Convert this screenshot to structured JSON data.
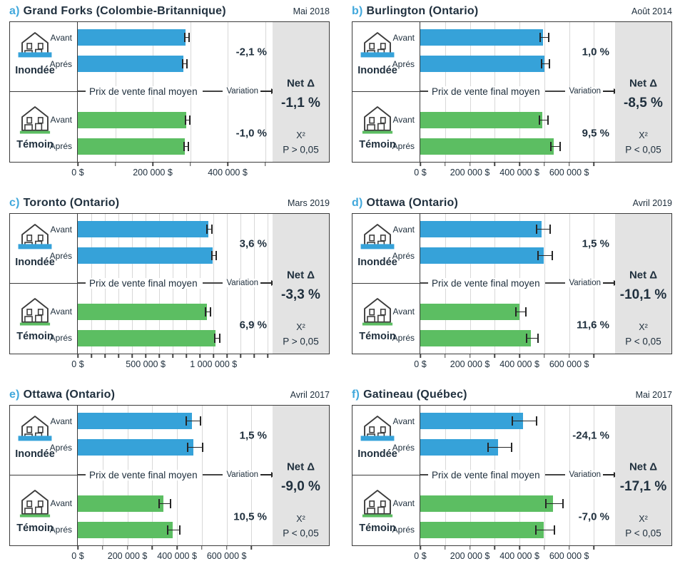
{
  "common": {
    "middle_label": "Prix de vente final moyen",
    "variation_label": "Variation",
    "net_title": "Net Δ",
    "chi_label": "X²",
    "colors": {
      "flooded_bar": "#36a2d9",
      "control_bar": "#5cbe62",
      "accent_letter": "#41a8dc",
      "text_dark": "#20303e",
      "gray_box": "#e3e3e3",
      "grid_line": "#d8d8d8",
      "border": "#3b3b3b"
    }
  },
  "chart_data": [
    {
      "type": "bar",
      "orientation": "horizontal",
      "letter": "a)",
      "title": "Grand Forks (Colombie-Britannique)",
      "date": "Mai 2018",
      "axis_max": 520000,
      "grid_step": 100000,
      "ticks": [
        {
          "value": 0,
          "label": "0 $"
        },
        {
          "value": 200000,
          "label": "200 000 $"
        },
        {
          "value": 400000,
          "label": "400 000 $"
        }
      ],
      "groups": [
        {
          "name": "Inondée",
          "variation": "-2,1 %",
          "bars": [
            {
              "label": "Avant",
              "value": 288000,
              "error": 4000
            },
            {
              "label": "Aprés",
              "value": 282000,
              "error": 4000
            }
          ]
        },
        {
          "name": "Témoin",
          "variation": "-1,0 %",
          "bars": [
            {
              "label": "Avant",
              "value": 289000,
              "error": 4000
            },
            {
              "label": "Aprés",
              "value": 286000,
              "error": 4000
            }
          ]
        }
      ],
      "net_delta": "-1,1 %",
      "p_text": "P > 0,05"
    },
    {
      "type": "bar",
      "orientation": "horizontal",
      "letter": "b)",
      "title": "Burlington (Ontario)",
      "date": "Août 2014",
      "axis_max": 785000,
      "grid_step": 100000,
      "ticks": [
        {
          "value": 0,
          "label": "0 $"
        },
        {
          "value": 200000,
          "label": "200 000 $"
        },
        {
          "value": 400000,
          "label": "400 000 $"
        },
        {
          "value": 600000,
          "label": "600 000 $"
        }
      ],
      "groups": [
        {
          "name": "Inondée",
          "variation": "1,0 %",
          "bars": [
            {
              "label": "Avant",
              "value": 494000,
              "error": 14000
            },
            {
              "label": "Aprés",
              "value": 499000,
              "error": 14000
            }
          ]
        },
        {
          "name": "Témoin",
          "variation": "9,5 %",
          "bars": [
            {
              "label": "Avant",
              "value": 492000,
              "error": 14000
            },
            {
              "label": "Aprés",
              "value": 539000,
              "error": 16000
            }
          ]
        }
      ],
      "net_delta": "-8,5 %",
      "p_text": "P < 0,05"
    },
    {
      "type": "bar",
      "orientation": "horizontal",
      "letter": "c)",
      "title": "Toronto (Ontario)",
      "date": "Mars 2019",
      "axis_max": 1435000,
      "grid_step": 100000,
      "ticks": [
        {
          "value": 0,
          "label": "0 $"
        },
        {
          "value": 500000,
          "label": "500 000 $"
        },
        {
          "value": 1000000,
          "label": "1 000 000 $"
        }
      ],
      "groups": [
        {
          "name": "Inondée",
          "variation": "3,6 %",
          "bars": [
            {
              "label": "Avant",
              "value": 960000,
              "error": 12000
            },
            {
              "label": "Aprés",
              "value": 994000,
              "error": 12000
            }
          ]
        },
        {
          "name": "Témoin",
          "variation": "6,9 %",
          "bars": [
            {
              "label": "Avant",
              "value": 950000,
              "error": 13000
            },
            {
              "label": "Aprés",
              "value": 1016000,
              "error": 14000
            }
          ]
        }
      ],
      "net_delta": "-3,3 %",
      "p_text": "P > 0,05"
    },
    {
      "type": "bar",
      "orientation": "horizontal",
      "letter": "d)",
      "title": "Ottawa (Ontario)",
      "date": "Avril 2019",
      "axis_max": 785000,
      "grid_step": 100000,
      "ticks": [
        {
          "value": 0,
          "label": "0 $"
        },
        {
          "value": 200000,
          "label": "200 000 $"
        },
        {
          "value": 400000,
          "label": "400 000 $"
        },
        {
          "value": 600000,
          "label": "600 000 $"
        }
      ],
      "groups": [
        {
          "name": "Inondée",
          "variation": "1,5 %",
          "bars": [
            {
              "label": "Avant",
              "value": 490000,
              "error": 24000
            },
            {
              "label": "Aprés",
              "value": 497000,
              "error": 26000
            }
          ]
        },
        {
          "name": "Témoin",
          "variation": "11,6 %",
          "bars": [
            {
              "label": "Avant",
              "value": 400000,
              "error": 17000
            },
            {
              "label": "Aprés",
              "value": 446000,
              "error": 20000
            }
          ]
        }
      ],
      "net_delta": "-10,1 %",
      "p_text": "P < 0,05"
    },
    {
      "type": "bar",
      "orientation": "horizontal",
      "letter": "e)",
      "title": "Ottawa (Ontario)",
      "date": "Avril 2017",
      "axis_max": 785000,
      "grid_step": 100000,
      "ticks": [
        {
          "value": 0,
          "label": "0 $"
        },
        {
          "value": 200000,
          "label": "200 000 $"
        },
        {
          "value": 400000,
          "label": "400 000 $"
        },
        {
          "value": 600000,
          "label": "600 000 $"
        }
      ],
      "groups": [
        {
          "name": "Inondée",
          "variation": "1,5 %",
          "bars": [
            {
              "label": "Avant",
              "value": 460000,
              "error": 27000
            },
            {
              "label": "Aprés",
              "value": 467000,
              "error": 28000
            }
          ]
        },
        {
          "name": "Témoin",
          "variation": "10,5 %",
          "bars": [
            {
              "label": "Avant",
              "value": 346000,
              "error": 20000
            },
            {
              "label": "Aprés",
              "value": 382000,
              "error": 22000
            }
          ]
        }
      ],
      "net_delta": "-9,0 %",
      "p_text": "P < 0,05"
    },
    {
      "type": "bar",
      "orientation": "horizontal",
      "letter": "f)",
      "title": "Gatineau (Québec)",
      "date": "Mai 2017",
      "axis_max": 785000,
      "grid_step": 100000,
      "ticks": [
        {
          "value": 0,
          "label": "0 $"
        },
        {
          "value": 200000,
          "label": "200 000 $"
        },
        {
          "value": 400000,
          "label": "400 000 $"
        },
        {
          "value": 600000,
          "label": "600 000 $"
        }
      ],
      "groups": [
        {
          "name": "Inondée",
          "variation": "-24,1 %",
          "bars": [
            {
              "label": "Avant",
              "value": 414000,
              "error": 45000
            },
            {
              "label": "Aprés",
              "value": 314000,
              "error": 45000
            }
          ]
        },
        {
          "name": "Témoin",
          "variation": "-7,0 %",
          "bars": [
            {
              "label": "Avant",
              "value": 534000,
              "error": 32000
            },
            {
              "label": "Aprés",
              "value": 497000,
              "error": 35000
            }
          ]
        }
      ],
      "net_delta": "-17,1 %",
      "p_text": "P < 0,05"
    }
  ]
}
